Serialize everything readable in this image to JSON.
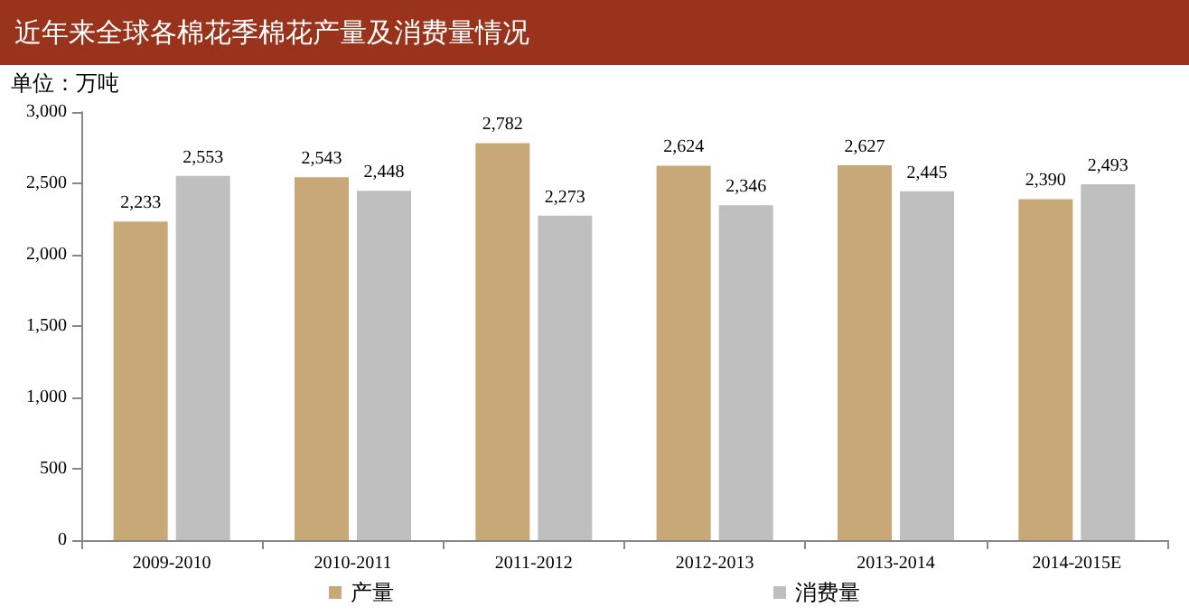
{
  "chart_data": {
    "type": "bar",
    "title": "近年来全球各棉花季棉花产量及消费量情况",
    "ylabel": "单位：万吨",
    "categories": [
      "2009-2010",
      "2010-2011",
      "2011-2012",
      "2012-2013",
      "2013-2014",
      "2014-2015E"
    ],
    "series": [
      {
        "name": "产量",
        "color": "#c9a878",
        "values": [
          2233,
          2543,
          2782,
          2624,
          2627,
          2390
        ],
        "value_labels": [
          "2,233",
          "2,543",
          "2,782",
          "2,624",
          "2,627",
          "2,390"
        ]
      },
      {
        "name": "消费量",
        "color": "#bfbfbf",
        "values": [
          2553,
          2448,
          2273,
          2346,
          2445,
          2493
        ],
        "value_labels": [
          "2,553",
          "2,448",
          "2,273",
          "2,346",
          "2,445",
          "2,493"
        ]
      }
    ],
    "ylim": [
      0,
      3000
    ],
    "yticks": [
      {
        "value": 0,
        "label": "0"
      },
      {
        "value": 500,
        "label": "500"
      },
      {
        "value": 1000,
        "label": "1,000"
      },
      {
        "value": 1500,
        "label": "1,500"
      },
      {
        "value": 2000,
        "label": "2,000"
      },
      {
        "value": 2500,
        "label": "2,500"
      },
      {
        "value": 3000,
        "label": "3,000"
      }
    ],
    "grid": false,
    "legend": "bottom"
  }
}
